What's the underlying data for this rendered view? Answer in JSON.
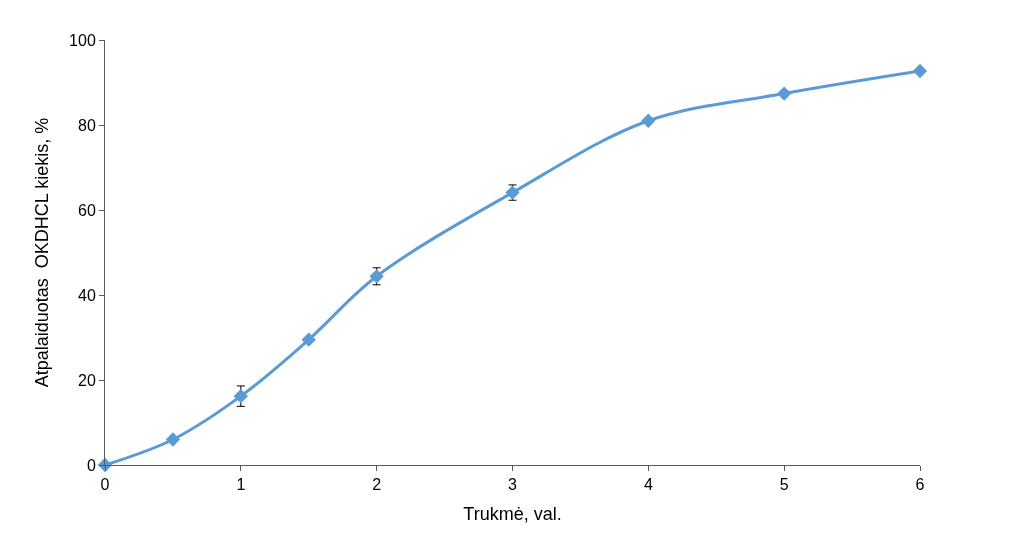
{
  "chart_data": {
    "type": "line",
    "xlabel": "Trukmė, val.",
    "ylabel": "Atpalaiduotas  OKDHCL kiekis, %",
    "x": [
      0,
      0.5,
      1,
      1.5,
      2,
      3,
      4,
      5,
      6
    ],
    "series": [
      {
        "color": "#5b9bd5",
        "values": [
          0,
          6,
          16.2,
          29.5,
          44.4,
          64.1,
          81,
          87.4,
          92.7
        ],
        "errors": [
          null,
          null,
          2.4,
          null,
          2,
          1.8,
          null,
          null,
          null
        ]
      }
    ],
    "xlim": [
      0,
      6
    ],
    "xticks": [
      0,
      1,
      2,
      3,
      4,
      5,
      6
    ],
    "ylim": [
      0,
      100
    ],
    "yticks": [
      0,
      20,
      40,
      60,
      80,
      100
    ],
    "marker": "diamond",
    "line_style": "solid"
  }
}
